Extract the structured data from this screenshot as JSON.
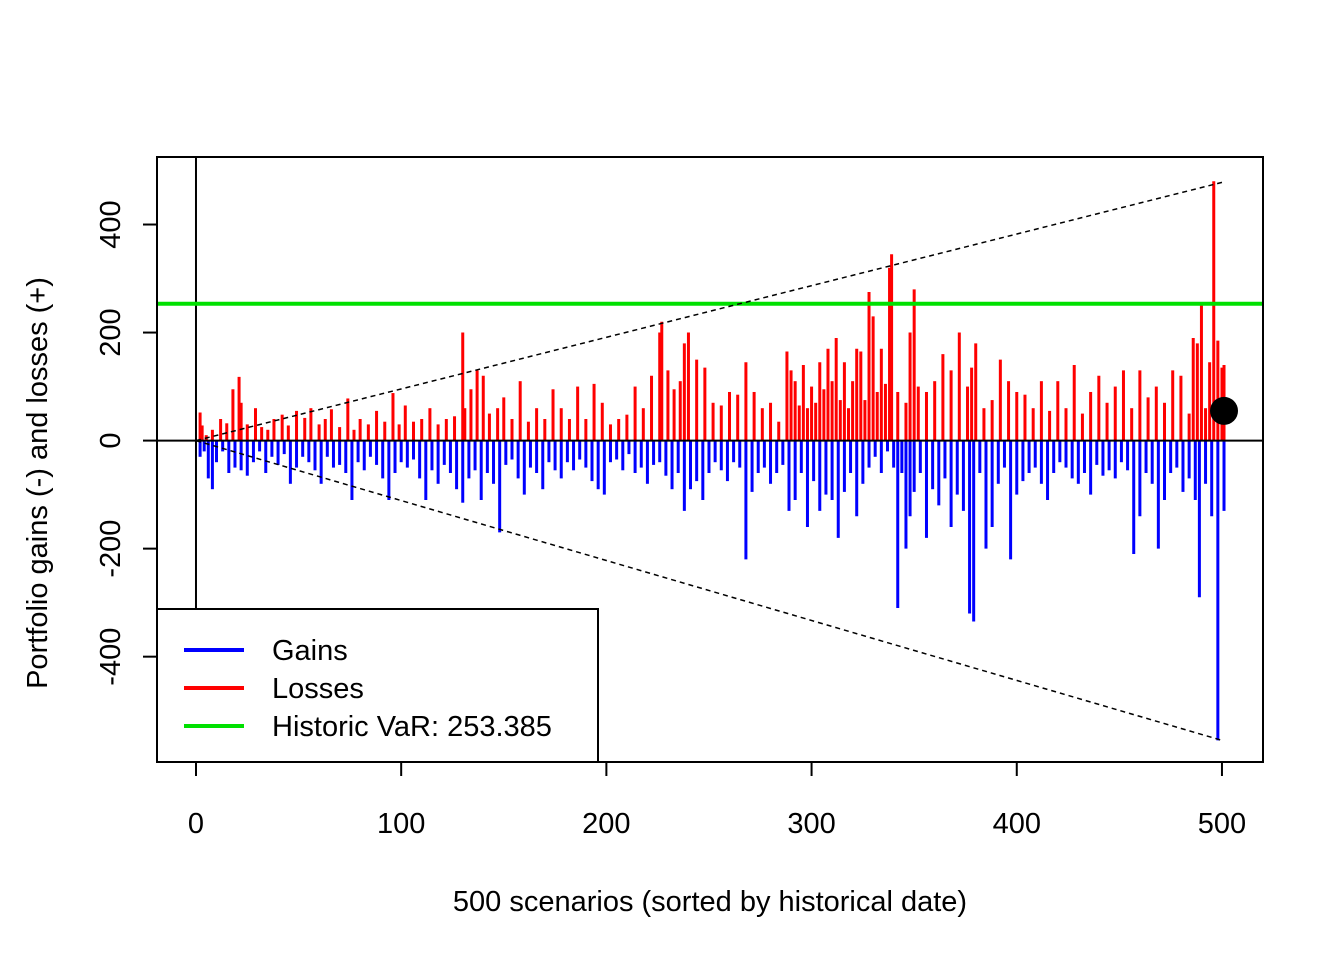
{
  "chart_data": {
    "type": "bar",
    "xlabel": "500 scenarios (sorted by historical date)",
    "ylabel": "Portfolio gains (-) and losses (+)",
    "xlim": [
      -19,
      520
    ],
    "ylim": [
      -595,
      525
    ],
    "x_ticks": [
      0,
      100,
      200,
      300,
      400,
      500
    ],
    "y_ticks": [
      -400,
      -200,
      0,
      200,
      400
    ],
    "colors": {
      "gains": "#0000FF",
      "losses": "#FF0000",
      "var": "#00E000",
      "axis": "#000000"
    },
    "historic_var": 253.385,
    "legend": {
      "placement": "bottom-left",
      "items": [
        {
          "label": "Gains",
          "color": "#0000FF"
        },
        {
          "label": "Losses",
          "color": "#FF0000"
        },
        {
          "label": "Historic VaR: 253.385",
          "color": "#00E000"
        }
      ]
    },
    "upper_trend": {
      "x": [
        0,
        500
      ],
      "y": [
        0,
        478
      ]
    },
    "lower_trend": {
      "x": [
        0,
        500
      ],
      "y": [
        0,
        -555
      ]
    },
    "marker": {
      "x": 501,
      "y": 55
    },
    "series": [
      {
        "name": "Losses",
        "x": [
          2,
          3,
          5,
          8,
          12,
          15,
          18,
          21,
          22,
          25,
          29,
          32,
          35,
          38,
          42,
          45,
          49,
          53,
          56,
          60,
          63,
          66,
          70,
          74,
          77,
          80,
          84,
          88,
          92,
          96,
          99,
          102,
          106,
          110,
          114,
          118,
          122,
          126,
          130,
          131,
          134,
          137,
          140,
          143,
          147,
          150,
          154,
          158,
          162,
          166,
          170,
          174,
          178,
          182,
          186,
          190,
          194,
          198,
          202,
          206,
          210,
          214,
          218,
          222,
          226,
          227,
          230,
          233,
          236,
          238,
          240,
          244,
          248,
          252,
          256,
          260,
          264,
          268,
          272,
          276,
          280,
          284,
          288,
          290,
          292,
          294,
          296,
          298,
          300,
          302,
          304,
          306,
          308,
          310,
          312,
          314,
          316,
          318,
          320,
          322,
          324,
          326,
          328,
          330,
          332,
          334,
          336,
          338,
          339,
          342,
          346,
          348,
          350,
          352,
          356,
          360,
          364,
          368,
          372,
          376,
          378,
          380,
          384,
          388,
          392,
          396,
          400,
          404,
          408,
          412,
          416,
          420,
          424,
          428,
          432,
          436,
          440,
          444,
          448,
          452,
          456,
          460,
          464,
          468,
          472,
          476,
          480,
          484,
          486,
          488,
          490,
          492,
          494,
          496,
          498,
          500,
          501
        ],
        "y": [
          52,
          28,
          10,
          20,
          40,
          32,
          95,
          118,
          70,
          30,
          60,
          25,
          20,
          40,
          48,
          28,
          55,
          42,
          60,
          30,
          40,
          58,
          25,
          78,
          20,
          40,
          30,
          55,
          35,
          88,
          30,
          65,
          35,
          40,
          60,
          30,
          40,
          45,
          200,
          60,
          95,
          130,
          120,
          50,
          60,
          80,
          40,
          110,
          35,
          60,
          40,
          95,
          60,
          40,
          100,
          40,
          105,
          70,
          30,
          40,
          48,
          100,
          60,
          120,
          200,
          220,
          130,
          95,
          110,
          180,
          200,
          150,
          135,
          70,
          65,
          90,
          85,
          145,
          90,
          60,
          70,
          35,
          165,
          130,
          110,
          65,
          140,
          60,
          100,
          70,
          145,
          95,
          170,
          110,
          190,
          75,
          145,
          60,
          110,
          170,
          165,
          75,
          275,
          230,
          90,
          170,
          105,
          320,
          345,
          90,
          70,
          200,
          280,
          100,
          90,
          110,
          160,
          130,
          200,
          100,
          135,
          180,
          60,
          75,
          150,
          110,
          90,
          85,
          60,
          110,
          55,
          110,
          60,
          140,
          50,
          90,
          120,
          70,
          100,
          130,
          60,
          130,
          80,
          100,
          70,
          130,
          120,
          50,
          190,
          180,
          250,
          60,
          145,
          480,
          185,
          135,
          140
        ]
      },
      {
        "name": "Gains",
        "x": [
          2,
          4,
          6,
          8,
          10,
          13,
          16,
          19,
          22,
          25,
          28,
          31,
          34,
          37,
          40,
          43,
          46,
          49,
          52,
          55,
          58,
          61,
          64,
          67,
          70,
          73,
          76,
          79,
          82,
          85,
          88,
          91,
          94,
          97,
          100,
          103,
          106,
          109,
          112,
          115,
          118,
          121,
          124,
          127,
          130,
          133,
          136,
          139,
          142,
          145,
          148,
          151,
          154,
          157,
          160,
          163,
          166,
          169,
          172,
          175,
          178,
          181,
          184,
          187,
          190,
          193,
          196,
          199,
          202,
          205,
          208,
          211,
          214,
          217,
          220,
          223,
          226,
          229,
          232,
          235,
          238,
          241,
          244,
          247,
          250,
          253,
          256,
          259,
          262,
          265,
          268,
          271,
          274,
          277,
          280,
          283,
          286,
          289,
          292,
          295,
          298,
          301,
          304,
          307,
          310,
          313,
          316,
          319,
          322,
          325,
          328,
          331,
          334,
          337,
          340,
          342,
          344,
          346,
          348,
          350,
          353,
          356,
          359,
          362,
          365,
          368,
          371,
          374,
          377,
          379,
          382,
          385,
          388,
          391,
          394,
          397,
          400,
          403,
          406,
          409,
          412,
          415,
          418,
          421,
          424,
          427,
          430,
          433,
          436,
          439,
          442,
          445,
          448,
          451,
          454,
          457,
          460,
          463,
          466,
          469,
          472,
          475,
          478,
          481,
          484,
          487,
          489,
          492,
          495,
          498,
          501
        ],
        "y": [
          -30,
          -20,
          -70,
          -90,
          -40,
          -20,
          -60,
          -50,
          -55,
          -65,
          -40,
          -20,
          -60,
          -30,
          -45,
          -25,
          -80,
          -50,
          -30,
          -40,
          -55,
          -80,
          -30,
          -50,
          -45,
          -60,
          -110,
          -40,
          -55,
          -30,
          -45,
          -70,
          -110,
          -60,
          -40,
          -50,
          -35,
          -70,
          -110,
          -55,
          -80,
          -45,
          -60,
          -90,
          -115,
          -70,
          -55,
          -110,
          -60,
          -80,
          -170,
          -45,
          -35,
          -70,
          -100,
          -50,
          -60,
          -90,
          -40,
          -55,
          -70,
          -40,
          -55,
          -35,
          -50,
          -75,
          -90,
          -100,
          -40,
          -35,
          -55,
          -25,
          -60,
          -50,
          -80,
          -45,
          -40,
          -65,
          -90,
          -60,
          -130,
          -90,
          -75,
          -110,
          -60,
          -40,
          -55,
          -75,
          -40,
          -50,
          -220,
          -95,
          -60,
          -50,
          -80,
          -60,
          -45,
          -130,
          -110,
          -60,
          -160,
          -75,
          -130,
          -100,
          -110,
          -180,
          -95,
          -60,
          -140,
          -80,
          -50,
          -30,
          -60,
          -20,
          -50,
          -310,
          -60,
          -200,
          -140,
          -95,
          -60,
          -180,
          -90,
          -120,
          -70,
          -160,
          -100,
          -130,
          -320,
          -335,
          -60,
          -200,
          -160,
          -80,
          -50,
          -220,
          -100,
          -75,
          -60,
          -50,
          -80,
          -110,
          -60,
          -40,
          -50,
          -70,
          -80,
          -60,
          -100,
          -45,
          -65,
          -55,
          -70,
          -40,
          -55,
          -210,
          -140,
          -60,
          -80,
          -200,
          -110,
          -60,
          -50,
          -95,
          -70,
          -110,
          -290,
          -80,
          -140,
          -555,
          -130
        ]
      }
    ]
  }
}
